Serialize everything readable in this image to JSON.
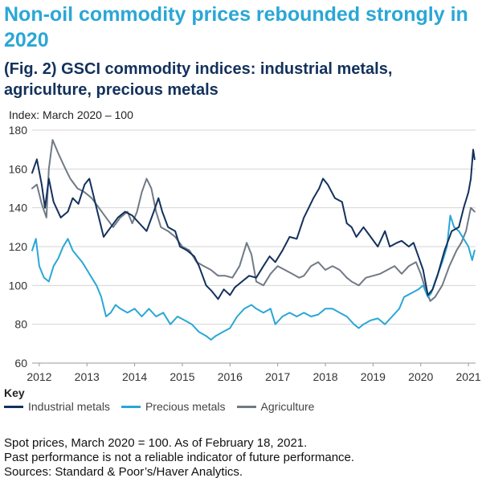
{
  "headline": "Non-oil commodity prices rebounded strongly in 2020",
  "chart_data": {
    "type": "line",
    "title": "(Fig. 2) GSCI commodity indices: industrial metals, agriculture, precious metals",
    "ylabel": "Index: March 2020 – 100",
    "xlabel": "",
    "ylim": [
      60,
      180
    ],
    "yticks": [
      60,
      80,
      100,
      120,
      140,
      160,
      180
    ],
    "xlim": [
      2011.85,
      2021.15
    ],
    "xticks": [
      2012,
      2013,
      2014,
      2015,
      2016,
      2017,
      2018,
      2019,
      2020,
      2021
    ],
    "xtick_labels": [
      "2012",
      "2013",
      "2014",
      "2015",
      "2016",
      "2017",
      "2018",
      "2019",
      "2020",
      "2021"
    ],
    "grid": "horizontal",
    "legend_title": "Key",
    "legend_position": "bottom-left",
    "series": [
      {
        "name": "Industrial metals",
        "color": "#13315c",
        "x": [
          2011.85,
          2011.95,
          2012.05,
          2012.12,
          2012.2,
          2012.3,
          2012.45,
          2012.6,
          2012.7,
          2012.82,
          2012.95,
          2013.05,
          2013.2,
          2013.35,
          2013.5,
          2013.65,
          2013.8,
          2013.95,
          2014.1,
          2014.25,
          2014.4,
          2014.5,
          2014.58,
          2014.7,
          2014.85,
          2014.95,
          2015.1,
          2015.25,
          2015.35,
          2015.5,
          2015.62,
          2015.75,
          2015.87,
          2016.0,
          2016.1,
          2016.25,
          2016.4,
          2016.55,
          2016.7,
          2016.83,
          2016.95,
          2017.1,
          2017.25,
          2017.4,
          2017.55,
          2017.65,
          2017.75,
          2017.87,
          2017.95,
          2018.05,
          2018.2,
          2018.35,
          2018.45,
          2018.55,
          2018.65,
          2018.8,
          2018.95,
          2019.1,
          2019.25,
          2019.35,
          2019.5,
          2019.6,
          2019.75,
          2019.85,
          2019.95,
          2020.05,
          2020.15,
          2020.25,
          2020.35,
          2020.5,
          2020.65,
          2020.8,
          2020.9,
          2021.0,
          2021.05,
          2021.1,
          2021.13
        ],
        "y": [
          158,
          165,
          152,
          140,
          155,
          143,
          135,
          138,
          145,
          142,
          152,
          155,
          140,
          125,
          130,
          135,
          138,
          136,
          132,
          128,
          138,
          145,
          138,
          130,
          128,
          120,
          118,
          115,
          110,
          100,
          97,
          93,
          98,
          95,
          99,
          102,
          105,
          104,
          110,
          115,
          112,
          118,
          125,
          124,
          135,
          140,
          145,
          150,
          155,
          152,
          145,
          143,
          132,
          130,
          125,
          130,
          125,
          120,
          128,
          120,
          122,
          123,
          120,
          122,
          115,
          108,
          95,
          98,
          105,
          118,
          128,
          130,
          140,
          148,
          155,
          170,
          165
        ]
      },
      {
        "name": "Precious metals",
        "color": "#2aa7d6",
        "x": [
          2011.85,
          2011.93,
          2012.0,
          2012.1,
          2012.2,
          2012.3,
          2012.4,
          2012.5,
          2012.6,
          2012.7,
          2012.8,
          2012.9,
          2013.0,
          2013.1,
          2013.2,
          2013.3,
          2013.4,
          2013.5,
          2013.6,
          2013.7,
          2013.85,
          2014.0,
          2014.15,
          2014.3,
          2014.45,
          2014.6,
          2014.75,
          2014.9,
          2015.05,
          2015.2,
          2015.35,
          2015.5,
          2015.6,
          2015.7,
          2015.85,
          2016.0,
          2016.15,
          2016.3,
          2016.45,
          2016.55,
          2016.7,
          2016.85,
          2016.95,
          2017.1,
          2017.25,
          2017.4,
          2017.55,
          2017.7,
          2017.85,
          2018.0,
          2018.15,
          2018.3,
          2018.45,
          2018.6,
          2018.7,
          2018.8,
          2018.95,
          2019.1,
          2019.25,
          2019.4,
          2019.55,
          2019.65,
          2019.8,
          2019.95,
          2020.05,
          2020.15,
          2020.22,
          2020.3,
          2020.45,
          2020.55,
          2020.62,
          2020.7,
          2020.8,
          2020.9,
          2021.0,
          2021.08,
          2021.13
        ],
        "y": [
          118,
          124,
          110,
          104,
          102,
          110,
          114,
          120,
          124,
          118,
          115,
          112,
          108,
          104,
          100,
          94,
          84,
          86,
          90,
          88,
          86,
          88,
          84,
          88,
          84,
          86,
          80,
          84,
          82,
          80,
          76,
          74,
          72,
          74,
          76,
          78,
          84,
          88,
          90,
          88,
          86,
          88,
          80,
          84,
          86,
          84,
          86,
          84,
          85,
          88,
          88,
          86,
          84,
          80,
          78,
          80,
          82,
          83,
          80,
          84,
          88,
          94,
          96,
          98,
          100,
          94,
          96,
          102,
          112,
          120,
          136,
          130,
          128,
          124,
          120,
          113,
          118
        ]
      },
      {
        "name": "Agriculture",
        "color": "#707a85",
        "x": [
          2011.85,
          2011.95,
          2012.05,
          2012.15,
          2012.2,
          2012.28,
          2012.4,
          2012.55,
          2012.65,
          2012.8,
          2012.95,
          2013.1,
          2013.25,
          2013.4,
          2013.55,
          2013.7,
          2013.85,
          2013.95,
          2014.05,
          2014.15,
          2014.25,
          2014.35,
          2014.45,
          2014.55,
          2014.7,
          2014.85,
          2015.0,
          2015.15,
          2015.3,
          2015.45,
          2015.6,
          2015.75,
          2015.9,
          2016.05,
          2016.2,
          2016.35,
          2016.45,
          2016.55,
          2016.7,
          2016.85,
          2017.0,
          2017.15,
          2017.3,
          2017.45,
          2017.55,
          2017.7,
          2017.85,
          2018.0,
          2018.15,
          2018.3,
          2018.45,
          2018.55,
          2018.7,
          2018.85,
          2019.0,
          2019.15,
          2019.3,
          2019.45,
          2019.6,
          2019.75,
          2019.9,
          2020.0,
          2020.1,
          2020.2,
          2020.3,
          2020.45,
          2020.6,
          2020.75,
          2020.85,
          2020.95,
          2021.05,
          2021.13
        ],
        "y": [
          150,
          152,
          142,
          135,
          160,
          175,
          168,
          160,
          155,
          150,
          148,
          145,
          140,
          135,
          130,
          135,
          138,
          132,
          138,
          148,
          155,
          150,
          138,
          130,
          128,
          125,
          120,
          118,
          112,
          110,
          108,
          105,
          105,
          104,
          110,
          122,
          116,
          102,
          100,
          106,
          110,
          108,
          106,
          104,
          105,
          110,
          112,
          108,
          110,
          108,
          104,
          102,
          100,
          104,
          105,
          106,
          108,
          110,
          106,
          110,
          112,
          106,
          98,
          92,
          94,
          100,
          110,
          118,
          122,
          128,
          140,
          138
        ]
      }
    ]
  },
  "footer": {
    "line1": "Spot prices, March 2020 = 100. As of February 18, 2021.",
    "line2": "Past performance is not a reliable indicator of future performance.",
    "line3": "Sources: Standard & Poor’s/Haver Analytics."
  }
}
